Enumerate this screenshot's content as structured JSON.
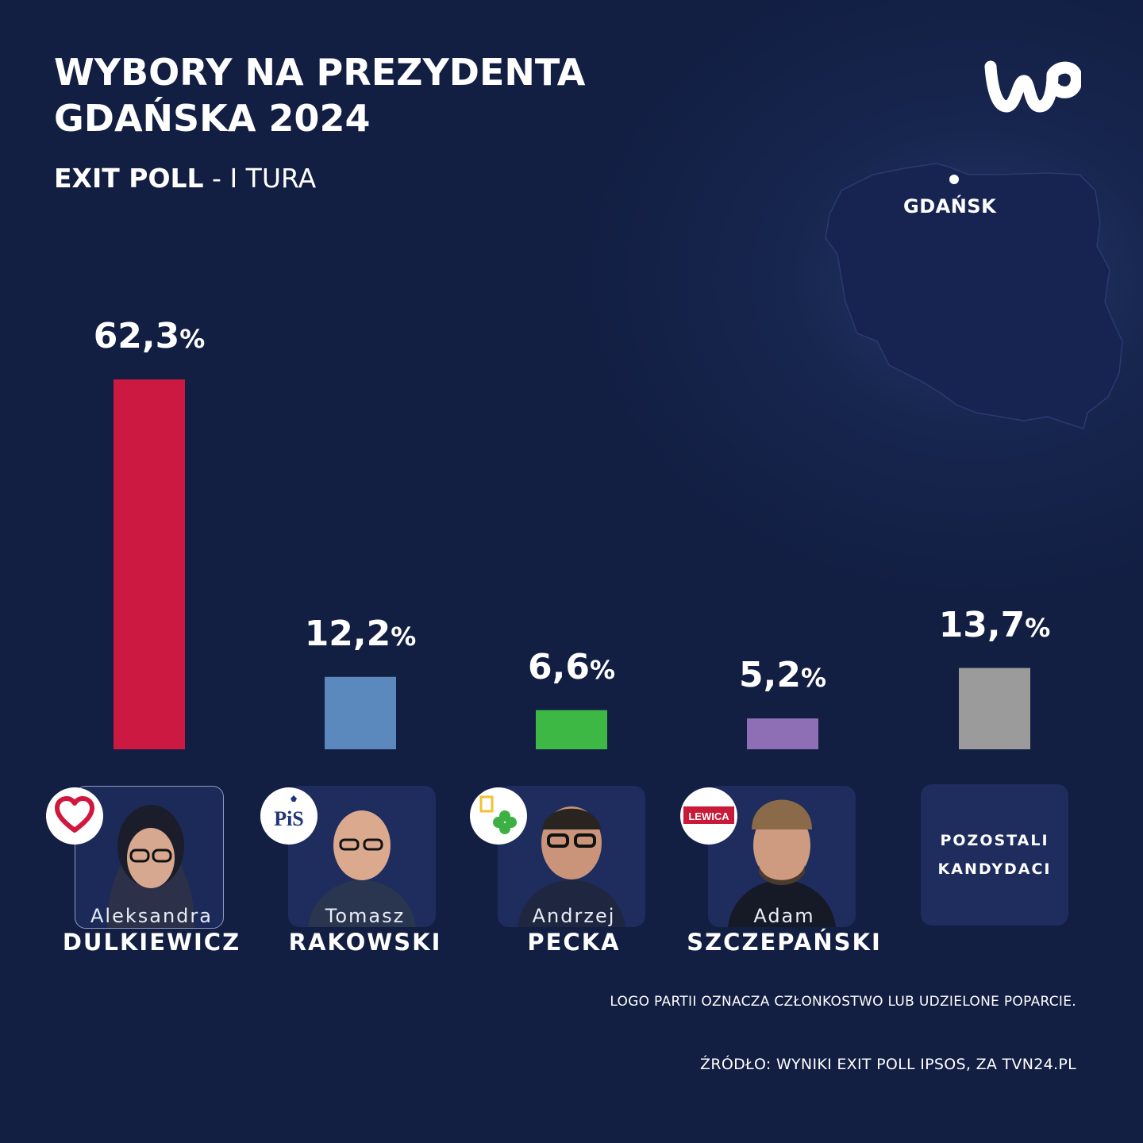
{
  "header": {
    "title_line1": "WYBORY NA PREZYDENTA",
    "title_line2": "GDAŃSKA  2024",
    "subtitle_bold": "EXIT POLL",
    "subtitle_rest": " - I TURA"
  },
  "brand": {
    "logo_text": "WP"
  },
  "map": {
    "city_label": "GDAŃSK"
  },
  "chart_data": {
    "type": "bar",
    "title": "WYBORY NA PREZYDENTA GDAŃSKA 2024",
    "subtitle": "EXIT POLL - I TURA",
    "categories": [
      "Aleksandra DULKIEWICZ",
      "Tomasz RAKOWSKI",
      "Andrzej PECKA",
      "Adam SZCZEPAŃSKI",
      "POZOSTALI KANDYDACI"
    ],
    "values": [
      62.3,
      12.2,
      6.6,
      5.2,
      13.7
    ],
    "value_labels": [
      "62,3",
      "12,2",
      "6,6",
      "5,2",
      "13,7"
    ],
    "unit": "%",
    "colors": [
      "#cc1941",
      "#5b88bd",
      "#3db844",
      "#8e6fb5",
      "#9b9b9b"
    ],
    "ylim": [
      0,
      62.3
    ],
    "grid": false,
    "legend": "none"
  },
  "candidates": [
    {
      "first": "Aleksandra",
      "last": "DULKIEWICZ",
      "party_icon": "heart-icon"
    },
    {
      "first": "Tomasz",
      "last": "RAKOWSKI",
      "party_icon": "pis-logo",
      "party_text": "PiS"
    },
    {
      "first": "Andrzej",
      "last": "PECKA",
      "party_icon": "clover-logo"
    },
    {
      "first": "Adam",
      "last": "SZCZEPAŃSKI",
      "party_icon": "lewica-logo",
      "party_text": "LEWICA"
    }
  ],
  "others": {
    "line1": "POZOSTALI",
    "line2": "KANDYDACI"
  },
  "footer": {
    "note": "LOGO PARTII OZNACZA CZŁONKOSTWO LUB UDZIELONE POPARCIE.",
    "source": "ŹRÓDŁO: WYNIKI EXIT POLL IPSOS, ZA TVN24.PL"
  }
}
